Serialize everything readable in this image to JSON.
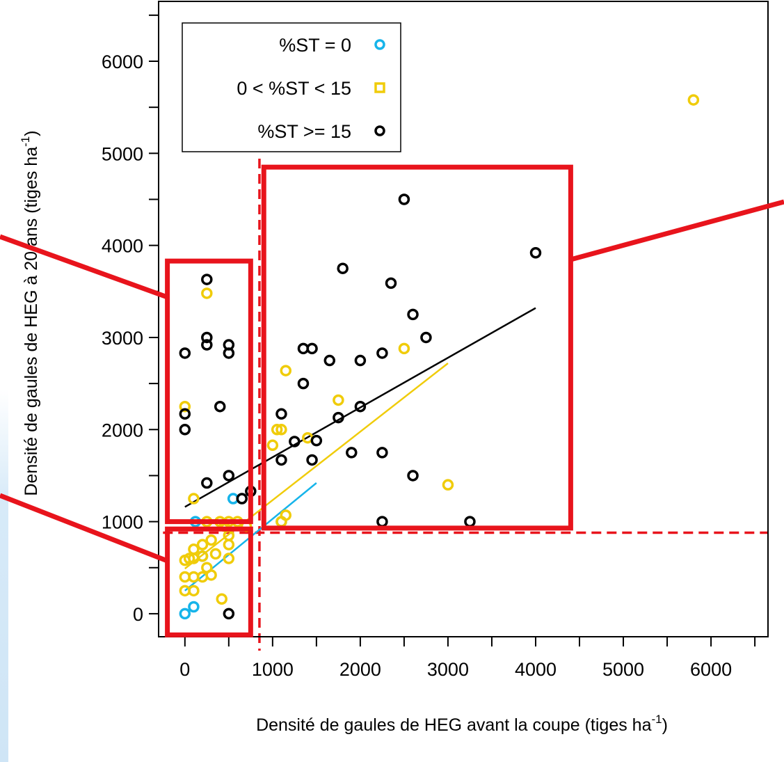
{
  "chart_data": {
    "type": "scatter",
    "title": "",
    "xlabel": {
      "main": "Densité de gaules de HEG avant la coupe (tiges ha",
      "sup": "-1",
      "tail": ")"
    },
    "ylabel": {
      "main": "Densité de gaules de HEG à 20 ans (tiges ha",
      "sup": "-1",
      "tail": ")"
    },
    "xlim": [
      -300,
      6650
    ],
    "ylim": [
      -250,
      6650
    ],
    "x_ticks": [
      0,
      1000,
      2000,
      3000,
      4000,
      5000,
      6000
    ],
    "x_minor_ticks": [
      500,
      1500,
      2500,
      3500,
      4500,
      5500,
      6500
    ],
    "y_ticks": [
      0,
      1000,
      2000,
      3000,
      4000,
      5000,
      6000
    ],
    "y_minor_ticks": [
      500,
      1500,
      2500,
      3500,
      4500,
      5500,
      6500
    ],
    "grid": false,
    "legend": {
      "position": "top-left",
      "entries": [
        {
          "label": "%ST = 0",
          "series": 0,
          "marker": "circle"
        },
        {
          "label": "0 < %ST < 15",
          "series": 1,
          "marker": "square"
        },
        {
          "label": "%ST >= 15",
          "series": 2,
          "marker": "circle"
        }
      ]
    },
    "series": [
      {
        "name": "%ST = 0",
        "color": "#16b4ea",
        "points": [
          [
            0,
            0
          ],
          [
            100,
            75
          ],
          [
            120,
            1000
          ],
          [
            200,
            625
          ],
          [
            550,
            1250
          ],
          [
            1100,
            1000
          ]
        ],
        "fit": [
          [
            0,
            250
          ],
          [
            1500,
            1420
          ]
        ]
      },
      {
        "name": "0 < %ST < 15",
        "color": "#f0cc0a",
        "points": [
          [
            0,
            2250
          ],
          [
            0,
            250
          ],
          [
            0,
            400
          ],
          [
            0,
            580
          ],
          [
            50,
            600
          ],
          [
            100,
            250
          ],
          [
            100,
            400
          ],
          [
            100,
            600
          ],
          [
            100,
            700
          ],
          [
            100,
            1250
          ],
          [
            200,
            625
          ],
          [
            200,
            400
          ],
          [
            200,
            750
          ],
          [
            250,
            3480
          ],
          [
            250,
            1000
          ],
          [
            250,
            500
          ],
          [
            300,
            420
          ],
          [
            300,
            800
          ],
          [
            350,
            650
          ],
          [
            400,
            1000
          ],
          [
            420,
            160
          ],
          [
            450,
            950
          ],
          [
            500,
            1000
          ],
          [
            500,
            850
          ],
          [
            500,
            600
          ],
          [
            500,
            750
          ],
          [
            600,
            1000
          ],
          [
            700,
            950
          ],
          [
            1000,
            1830
          ],
          [
            1050,
            2000
          ],
          [
            1100,
            2000
          ],
          [
            1100,
            1000
          ],
          [
            1150,
            2640
          ],
          [
            1150,
            1070
          ],
          [
            1400,
            1910
          ],
          [
            1750,
            2320
          ],
          [
            2500,
            2880
          ],
          [
            3000,
            1400
          ],
          [
            5800,
            5580
          ]
        ],
        "fit": [
          [
            0,
            490
          ],
          [
            3000,
            2720
          ]
        ]
      },
      {
        "name": "%ST >= 15",
        "color": "#000000",
        "points": [
          [
            0,
            2830
          ],
          [
            0,
            2170
          ],
          [
            0,
            2000
          ],
          [
            250,
            3630
          ],
          [
            250,
            3000
          ],
          [
            250,
            2920
          ],
          [
            250,
            1420
          ],
          [
            400,
            2250
          ],
          [
            500,
            2920
          ],
          [
            500,
            2830
          ],
          [
            500,
            1500
          ],
          [
            500,
            0
          ],
          [
            650,
            1250
          ],
          [
            750,
            1330
          ],
          [
            1100,
            2170
          ],
          [
            1100,
            1670
          ],
          [
            1250,
            1870
          ],
          [
            1350,
            2500
          ],
          [
            1350,
            2880
          ],
          [
            1450,
            2880
          ],
          [
            1450,
            1670
          ],
          [
            1500,
            1880
          ],
          [
            1650,
            2750
          ],
          [
            1800,
            3750
          ],
          [
            1750,
            2130
          ],
          [
            1900,
            1750
          ],
          [
            2000,
            2250
          ],
          [
            2000,
            2750
          ],
          [
            2250,
            2830
          ],
          [
            2250,
            1750
          ],
          [
            2250,
            1000
          ],
          [
            2350,
            3590
          ],
          [
            2500,
            4500
          ],
          [
            2600,
            3250
          ],
          [
            2600,
            1500
          ],
          [
            2750,
            3000
          ],
          [
            3250,
            1000
          ],
          [
            4000,
            3920
          ]
        ],
        "fit": [
          [
            0,
            1160
          ],
          [
            4000,
            3320
          ]
        ]
      }
    ],
    "annotations": {
      "dashed_lines": {
        "x": 850,
        "y": 880
      },
      "highlight_boxes": [
        {
          "x": [
            -200,
            750
          ],
          "y": [
            3830,
            1000
          ]
        },
        {
          "x": [
            -200,
            750
          ],
          "y": [
            920,
            -230
          ]
        },
        {
          "x": [
            900,
            4400
          ],
          "y": [
            4850,
            930
          ]
        }
      ]
    }
  }
}
